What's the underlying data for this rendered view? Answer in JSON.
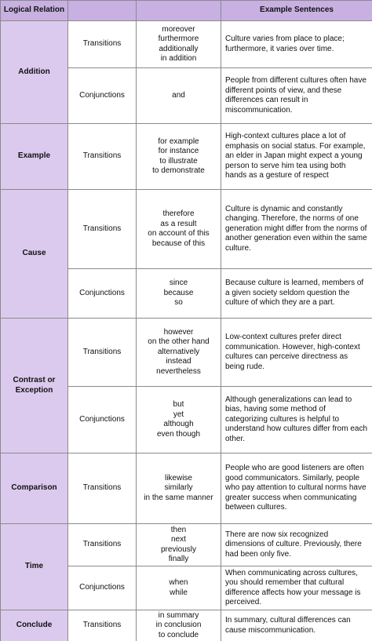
{
  "header": {
    "relation": "Logical Relation",
    "sentences": "Example Sentences"
  },
  "groups": [
    {
      "relation": "Addition",
      "rows": [
        {
          "type": "Transitions",
          "words": [
            "moreover",
            "furthermore",
            "additionally",
            "in addition"
          ],
          "sentence": "Culture varies from place to place; furthermore, it varies over time."
        },
        {
          "type": "Conjunctions",
          "words": [
            "and"
          ],
          "sentence": "People from different cultures often have different points of view, and these differences can result in miscommunication."
        }
      ]
    },
    {
      "relation": "Example",
      "rows": [
        {
          "type": "Transitions",
          "words": [
            "for example",
            "for instance",
            "to illustrate",
            "to demonstrate"
          ],
          "sentence": "High-context cultures place a lot of emphasis on social status. For example, an elder in Japan might expect a young person to serve him tea using both hands as a gesture of respect"
        }
      ]
    },
    {
      "relation": "Cause",
      "rows": [
        {
          "type": "Transitions",
          "words": [
            "therefore",
            "as a result",
            "on account of this",
            "because of this"
          ],
          "sentence": "Culture is dynamic and constantly changing. Therefore, the norms of one generation might differ from the norms of another generation even within the same culture."
        },
        {
          "type": "Conjunctions",
          "words": [
            "since",
            "because",
            "so"
          ],
          "sentence": "Because culture is learned, members of a given society seldom question the culture of which they are a part."
        }
      ]
    },
    {
      "relation": "Contrast or Exception",
      "rows": [
        {
          "type": "Transitions",
          "words": [
            "however",
            "on the other hand",
            "alternatively",
            "instead",
            "nevertheless"
          ],
          "sentence": "Low-context cultures prefer direct communication. However, high-context cultures can perceive directness as being rude."
        },
        {
          "type": "Conjunctions",
          "words": [
            "but",
            "yet",
            "although",
            "even though"
          ],
          "sentence": "Although generalizations can lead to bias, having some method of categorizing cultures is helpful to understand how cultures differ from each other."
        }
      ]
    },
    {
      "relation": "Comparison",
      "rows": [
        {
          "type": "Transitions",
          "words": [
            "likewise",
            "similarly",
            "in the same manner"
          ],
          "sentence": "People who are good listeners are often good communicators. Similarly, people who pay attention to cultural norms have greater success when communicating between cultures."
        }
      ]
    },
    {
      "relation": "Time",
      "rows": [
        {
          "type": "Transitions",
          "words": [
            "then",
            "next",
            "previously",
            "finally"
          ],
          "sentence": "There are now six recognized dimensions of culture. Previously, there had been only five."
        },
        {
          "type": "Conjunctions",
          "words": [
            "when",
            "while"
          ],
          "sentence": "When communicating across cultures, you should remember that cultural difference affects how your message is perceived."
        }
      ]
    },
    {
      "relation": "Conclude",
      "rows": [
        {
          "type": "Transitions",
          "words": [
            "in summary",
            "in conclusion",
            "to conclude"
          ],
          "sentence": "In summary, cultural differences can cause miscommunication."
        }
      ]
    }
  ]
}
